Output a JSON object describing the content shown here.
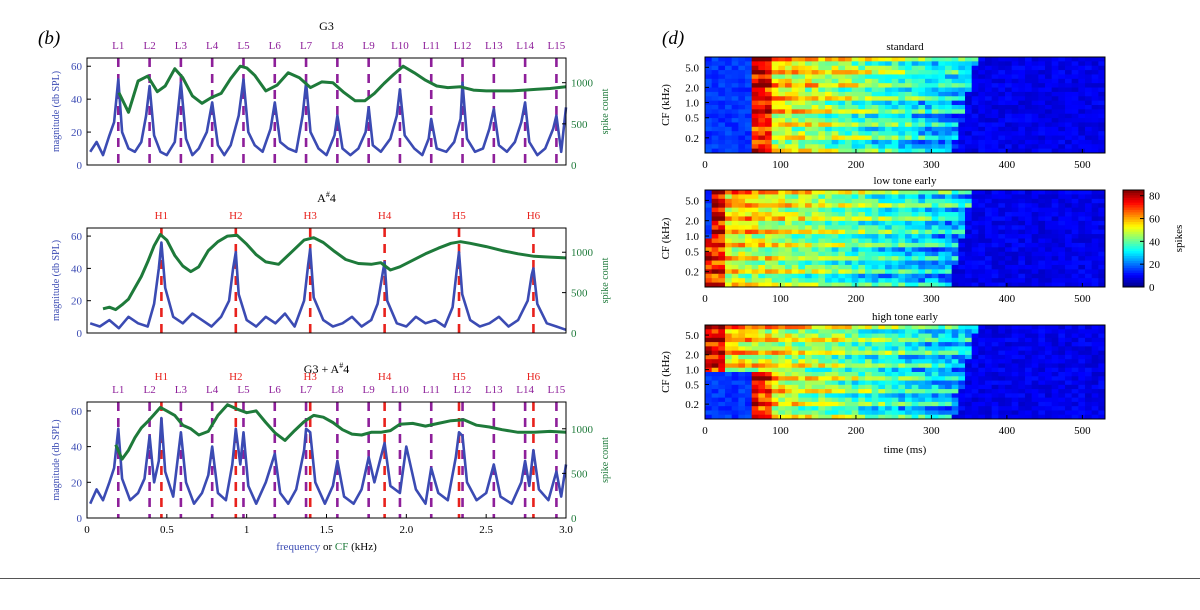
{
  "figure": {
    "panel_b_label": "(b)",
    "panel_d_label": "(d)",
    "colors": {
      "spectrum": "#3b4bb3",
      "spike": "#1e7a3a",
      "low_marker": "#8e1f9a",
      "high_marker": "#e8221d",
      "axis": "#000000"
    }
  },
  "chart_data": [
    {
      "type": "line",
      "id": "g3",
      "title": "G3",
      "xlim": [
        0,
        3.0
      ],
      "ylim": [
        0,
        65
      ],
      "y2lim": [
        0,
        1300
      ],
      "xlabel": "",
      "ylabel": "magnitude (db SPL)",
      "y2label": "spike count",
      "xticks": [],
      "yticks": [
        0,
        20,
        40,
        60
      ],
      "y2ticks": [
        0,
        500,
        1000
      ],
      "markers_low": {
        "labels": [
          "L1",
          "L2",
          "L3",
          "L4",
          "L5",
          "L6",
          "L7",
          "L8",
          "L9",
          "L10",
          "L11",
          "L12",
          "L13",
          "L14",
          "L15"
        ],
        "x": [
          0.196,
          0.392,
          0.588,
          0.784,
          0.98,
          1.176,
          1.372,
          1.568,
          1.764,
          1.96,
          2.156,
          2.352,
          2.548,
          2.744,
          2.94
        ]
      },
      "markers_high": {
        "labels": [],
        "x": []
      },
      "spectrum": {
        "x": [
          0.02,
          0.06,
          0.1,
          0.14,
          0.17,
          0.196,
          0.22,
          0.26,
          0.3,
          0.34,
          0.37,
          0.392,
          0.42,
          0.46,
          0.5,
          0.55,
          0.588,
          0.62,
          0.66,
          0.7,
          0.75,
          0.784,
          0.82,
          0.86,
          0.9,
          0.95,
          0.98,
          1.01,
          1.05,
          1.1,
          1.15,
          1.176,
          1.21,
          1.26,
          1.31,
          1.35,
          1.372,
          1.4,
          1.45,
          1.5,
          1.55,
          1.568,
          1.6,
          1.65,
          1.7,
          1.745,
          1.764,
          1.79,
          1.84,
          1.9,
          1.94,
          1.96,
          1.99,
          2.05,
          2.1,
          2.14,
          2.156,
          2.19,
          2.25,
          2.3,
          2.34,
          2.352,
          2.38,
          2.43,
          2.48,
          2.52,
          2.548,
          2.58,
          2.63,
          2.68,
          2.72,
          2.744,
          2.77,
          2.82,
          2.87,
          2.92,
          2.94,
          2.97,
          3.0
        ],
        "y": [
          8,
          14,
          6,
          18,
          26,
          52,
          20,
          10,
          8,
          14,
          30,
          48,
          18,
          8,
          6,
          14,
          50,
          16,
          6,
          10,
          20,
          38,
          12,
          6,
          12,
          30,
          52,
          20,
          12,
          8,
          22,
          38,
          14,
          10,
          8,
          30,
          50,
          20,
          10,
          6,
          18,
          30,
          10,
          6,
          10,
          20,
          35,
          12,
          8,
          16,
          30,
          46,
          18,
          10,
          6,
          16,
          28,
          10,
          8,
          14,
          28,
          50,
          16,
          8,
          10,
          22,
          34,
          12,
          8,
          14,
          26,
          38,
          14,
          6,
          10,
          22,
          30,
          8,
          35
        ]
      },
      "spike": {
        "x": [
          0.2,
          0.26,
          0.32,
          0.38,
          0.44,
          0.49,
          0.55,
          0.6,
          0.66,
          0.72,
          0.78,
          0.84,
          0.9,
          0.96,
          1.0,
          1.05,
          1.12,
          1.19,
          1.26,
          1.33,
          1.4,
          1.47,
          1.54,
          1.61,
          1.68,
          1.74,
          1.8,
          1.86,
          1.92,
          1.98,
          2.05,
          2.12,
          2.19,
          2.26,
          2.34,
          2.42,
          2.5,
          2.58,
          2.66,
          2.74,
          2.82,
          2.9,
          3.0
        ],
        "y": [
          880,
          640,
          1020,
          1080,
          890,
          960,
          1170,
          1060,
          840,
          750,
          820,
          870,
          1050,
          1200,
          1180,
          1090,
          900,
          970,
          1120,
          1060,
          940,
          1010,
          1000,
          880,
          780,
          780,
          870,
          990,
          1100,
          1200,
          1120,
          1030,
          960,
          940,
          950,
          910,
          900,
          900,
          900,
          910,
          920,
          930,
          950
        ]
      }
    },
    {
      "type": "line",
      "id": "asharp4",
      "title": "A#4",
      "title_base": "A",
      "title_sup": "#",
      "title_tail": "4",
      "xlim": [
        0,
        3.0
      ],
      "ylim": [
        0,
        65
      ],
      "y2lim": [
        0,
        1300
      ],
      "xlabel": "",
      "ylabel": "magnitude (db SPL)",
      "y2label": "spike count",
      "xticks": [],
      "yticks": [
        0,
        20,
        40,
        60
      ],
      "y2ticks": [
        0,
        500,
        1000
      ],
      "markers_low": {
        "labels": [],
        "x": []
      },
      "markers_high": {
        "labels": [
          "H1",
          "H2",
          "H3",
          "H4",
          "H5",
          "H6"
        ],
        "x": [
          0.466,
          0.932,
          1.398,
          1.864,
          2.33,
          2.796
        ]
      },
      "spectrum": {
        "x": [
          0.02,
          0.08,
          0.14,
          0.2,
          0.26,
          0.32,
          0.38,
          0.42,
          0.45,
          0.466,
          0.49,
          0.54,
          0.6,
          0.66,
          0.72,
          0.78,
          0.84,
          0.89,
          0.915,
          0.932,
          0.95,
          1.0,
          1.06,
          1.12,
          1.18,
          1.24,
          1.3,
          1.36,
          1.385,
          1.398,
          1.42,
          1.48,
          1.54,
          1.6,
          1.66,
          1.72,
          1.78,
          1.82,
          1.85,
          1.864,
          1.88,
          1.94,
          2.0,
          2.06,
          2.12,
          2.18,
          2.24,
          2.29,
          2.315,
          2.33,
          2.35,
          2.4,
          2.46,
          2.52,
          2.58,
          2.64,
          2.7,
          2.76,
          2.785,
          2.796,
          2.82,
          2.88,
          2.94,
          3.0
        ],
        "y": [
          6,
          4,
          8,
          3,
          10,
          6,
          4,
          18,
          40,
          56,
          28,
          10,
          6,
          12,
          8,
          4,
          10,
          20,
          40,
          50,
          24,
          8,
          4,
          10,
          6,
          12,
          4,
          20,
          42,
          52,
          22,
          8,
          4,
          6,
          10,
          4,
          8,
          18,
          36,
          44,
          20,
          6,
          4,
          10,
          6,
          8,
          4,
          16,
          38,
          50,
          24,
          8,
          4,
          6,
          10,
          4,
          8,
          20,
          36,
          40,
          18,
          6,
          4,
          2
        ]
      },
      "spike": {
        "x": [
          0.1,
          0.14,
          0.18,
          0.22,
          0.26,
          0.3,
          0.34,
          0.38,
          0.42,
          0.46,
          0.5,
          0.55,
          0.6,
          0.65,
          0.7,
          0.76,
          0.82,
          0.88,
          0.94,
          1.0,
          1.06,
          1.12,
          1.2,
          1.28,
          1.36,
          1.42,
          1.48,
          1.55,
          1.62,
          1.7,
          1.78,
          1.84,
          1.9,
          1.96,
          2.04,
          2.12,
          2.2,
          2.28,
          2.34,
          2.4,
          2.5,
          2.6,
          2.7,
          2.8,
          2.9,
          3.0
        ],
        "y": [
          300,
          320,
          290,
          350,
          420,
          560,
          700,
          880,
          1080,
          1220,
          1150,
          960,
          830,
          760,
          820,
          1020,
          1130,
          1200,
          1210,
          1100,
          970,
          880,
          850,
          1000,
          1150,
          1180,
          1120,
          1010,
          910,
          860,
          850,
          870,
          780,
          820,
          900,
          980,
          1050,
          1110,
          1130,
          1110,
          1070,
          1020,
          980,
          950,
          940,
          930
        ]
      }
    },
    {
      "type": "line",
      "id": "g3_plus_asharp4",
      "title": "G3 + A#4",
      "title_base": "G3 + A",
      "title_sup": "#",
      "title_tail": "4",
      "xlim": [
        0,
        3.0
      ],
      "ylim": [
        0,
        65
      ],
      "y2lim": [
        0,
        1300
      ],
      "xlabel": "frequency or CF (kHz)",
      "xlabel_part1": "frequency",
      "xlabel_part2": " or ",
      "xlabel_part3": "CF",
      "xlabel_part4": " (kHz)",
      "ylabel": "magnitude (db SPL)",
      "y2label": "spike count",
      "xticks": [
        0,
        0.5,
        1,
        1.5,
        2.0,
        2.5,
        3.0
      ],
      "xticklabels": [
        "0",
        "0.5",
        "1",
        "1.5",
        "2.0",
        "2.5",
        "3.0"
      ],
      "yticks": [
        0,
        20,
        40,
        60
      ],
      "y2ticks": [
        0,
        500,
        1000
      ],
      "markers_low": {
        "labels": [
          "L1",
          "L2",
          "L3",
          "L4",
          "L5",
          "L6",
          "L7",
          "L8",
          "L9",
          "L10",
          "L11",
          "L12",
          "L13",
          "L14",
          "L15"
        ],
        "x": [
          0.196,
          0.392,
          0.588,
          0.784,
          0.98,
          1.176,
          1.372,
          1.568,
          1.764,
          1.96,
          2.156,
          2.352,
          2.548,
          2.744,
          2.94
        ]
      },
      "markers_high": {
        "labels": [
          "H1",
          "H2",
          "H3",
          "H4",
          "H5",
          "H6"
        ],
        "x": [
          0.466,
          0.932,
          1.398,
          1.864,
          2.33,
          2.796
        ]
      },
      "spectrum": {
        "x": [
          0.02,
          0.06,
          0.1,
          0.14,
          0.17,
          0.196,
          0.22,
          0.27,
          0.32,
          0.36,
          0.392,
          0.42,
          0.45,
          0.466,
          0.49,
          0.54,
          0.588,
          0.62,
          0.67,
          0.72,
          0.76,
          0.784,
          0.82,
          0.87,
          0.91,
          0.932,
          0.96,
          0.98,
          1.01,
          1.06,
          1.12,
          1.176,
          1.21,
          1.26,
          1.31,
          1.36,
          1.372,
          1.398,
          1.43,
          1.49,
          1.54,
          1.568,
          1.61,
          1.67,
          1.72,
          1.764,
          1.8,
          1.84,
          1.864,
          1.9,
          1.96,
          2.0,
          2.06,
          2.12,
          2.156,
          2.2,
          2.26,
          2.31,
          2.33,
          2.352,
          2.38,
          2.44,
          2.5,
          2.548,
          2.59,
          2.66,
          2.72,
          2.744,
          2.77,
          2.796,
          2.83,
          2.89,
          2.94,
          2.97,
          3.0
        ],
        "y": [
          8,
          16,
          10,
          20,
          28,
          50,
          22,
          10,
          14,
          22,
          46,
          20,
          32,
          56,
          26,
          12,
          48,
          20,
          8,
          14,
          24,
          40,
          14,
          10,
          30,
          50,
          30,
          48,
          18,
          8,
          20,
          36,
          14,
          8,
          16,
          38,
          50,
          48,
          20,
          8,
          18,
          32,
          12,
          8,
          16,
          34,
          20,
          34,
          42,
          18,
          14,
          40,
          16,
          8,
          28,
          14,
          10,
          34,
          48,
          46,
          20,
          10,
          14,
          30,
          12,
          8,
          20,
          32,
          18,
          38,
          16,
          10,
          26,
          12,
          30
        ]
      },
      "spike": {
        "x": [
          0.18,
          0.22,
          0.26,
          0.3,
          0.34,
          0.38,
          0.42,
          0.46,
          0.5,
          0.55,
          0.6,
          0.65,
          0.7,
          0.76,
          0.82,
          0.88,
          0.94,
          1.0,
          1.06,
          1.12,
          1.18,
          1.24,
          1.3,
          1.36,
          1.42,
          1.48,
          1.54,
          1.6,
          1.66,
          1.72,
          1.78,
          1.84,
          1.9,
          1.96,
          2.04,
          2.12,
          2.2,
          2.28,
          2.36,
          2.44,
          2.52,
          2.6,
          2.7,
          2.8,
          2.9,
          3.0
        ],
        "y": [
          820,
          660,
          760,
          900,
          1010,
          1080,
          1160,
          1240,
          1200,
          1150,
          1040,
          1000,
          930,
          970,
          1150,
          1270,
          1220,
          1180,
          1200,
          1070,
          950,
          870,
          980,
          1080,
          1150,
          1130,
          1070,
          990,
          940,
          930,
          960,
          960,
          980,
          1050,
          1060,
          1030,
          1060,
          1090,
          1100,
          1040,
          1020,
          990,
          960,
          960,
          970,
          960
        ]
      }
    },
    {
      "type": "heatmap",
      "id": "standard",
      "title": "standard",
      "xlabel": "",
      "ylabel": "CF (kHz)",
      "xlim": [
        0,
        530
      ],
      "xticks": [
        0,
        100,
        200,
        300,
        400,
        500
      ],
      "yticklabels": [
        "5.0",
        "2.0",
        "1.0",
        "0.5",
        "0.2"
      ],
      "ytick_log_cf": [
        5.0,
        2.0,
        1.0,
        0.5,
        0.2
      ],
      "cf_range_khz": [
        0.1,
        8.0
      ],
      "onset_low_ms": 60,
      "onset_high_ms": 60,
      "offset_ms": 360,
      "clim": [
        0,
        85
      ]
    },
    {
      "type": "heatmap",
      "id": "low_tone_early",
      "title": "low tone early",
      "xlabel": "",
      "ylabel": "CF (kHz)",
      "xlim": [
        0,
        530
      ],
      "xticks": [
        0,
        100,
        200,
        300,
        400,
        500
      ],
      "yticklabels": [
        "5.0",
        "2.0",
        "1.0",
        "0.5",
        "0.2"
      ],
      "ytick_log_cf": [
        5.0,
        2.0,
        1.0,
        0.5,
        0.2
      ],
      "cf_range_khz": [
        0.1,
        8.0
      ],
      "onset_low_ms": 0,
      "onset_high_ms": 5,
      "offset_ms": 355,
      "clim": [
        0,
        85
      ]
    },
    {
      "type": "heatmap",
      "id": "high_tone_early",
      "title": "high tone early",
      "xlabel": "time (ms)",
      "ylabel": "CF (kHz)",
      "xlim": [
        0,
        530
      ],
      "xticks": [
        0,
        100,
        200,
        300,
        400,
        500
      ],
      "yticklabels": [
        "5.0",
        "2.0",
        "1.0",
        "0.5",
        "0.2"
      ],
      "ytick_log_cf": [
        5.0,
        2.0,
        1.0,
        0.5,
        0.2
      ],
      "cf_range_khz": [
        0.1,
        8.0
      ],
      "onset_low_ms": 60,
      "onset_high_ms": 0,
      "offset_ms": 360,
      "clim": [
        0,
        85
      ]
    }
  ],
  "colorbar": {
    "label": "spikes",
    "ticks": [
      0,
      20,
      40,
      60,
      80
    ],
    "range": [
      0,
      85
    ]
  }
}
